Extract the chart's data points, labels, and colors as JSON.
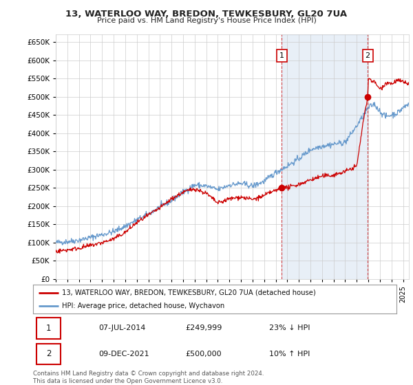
{
  "title": "13, WATERLOO WAY, BREDON, TEWKESBURY, GL20 7UA",
  "subtitle": "Price paid vs. HM Land Registry's House Price Index (HPI)",
  "legend_line1": "13, WATERLOO WAY, BREDON, TEWKESBURY, GL20 7UA (detached house)",
  "legend_line2": "HPI: Average price, detached house, Wychavon",
  "annotation1_label": "1",
  "annotation1_date": "07-JUL-2014",
  "annotation1_price": "£249,999",
  "annotation1_hpi": "23% ↓ HPI",
  "annotation2_label": "2",
  "annotation2_date": "09-DEC-2021",
  "annotation2_price": "£500,000",
  "annotation2_hpi": "10% ↑ HPI",
  "footer": "Contains HM Land Registry data © Crown copyright and database right 2024.\nThis data is licensed under the Open Government Licence v3.0.",
  "red_color": "#cc0000",
  "blue_color": "#6699cc",
  "blue_fill": "#ddeeff",
  "background_color": "#ffffff",
  "grid_color": "#cccccc",
  "ylim": [
    0,
    670000
  ],
  "yticks": [
    0,
    50000,
    100000,
    150000,
    200000,
    250000,
    300000,
    350000,
    400000,
    450000,
    500000,
    550000,
    600000,
    650000
  ],
  "sale1_x": 2014.52,
  "sale1_y": 249999,
  "sale2_x": 2021.94,
  "sale2_y": 500000,
  "vline1_x": 2014.52,
  "vline2_x": 2021.94,
  "xmin": 1995,
  "xmax": 2025.5
}
